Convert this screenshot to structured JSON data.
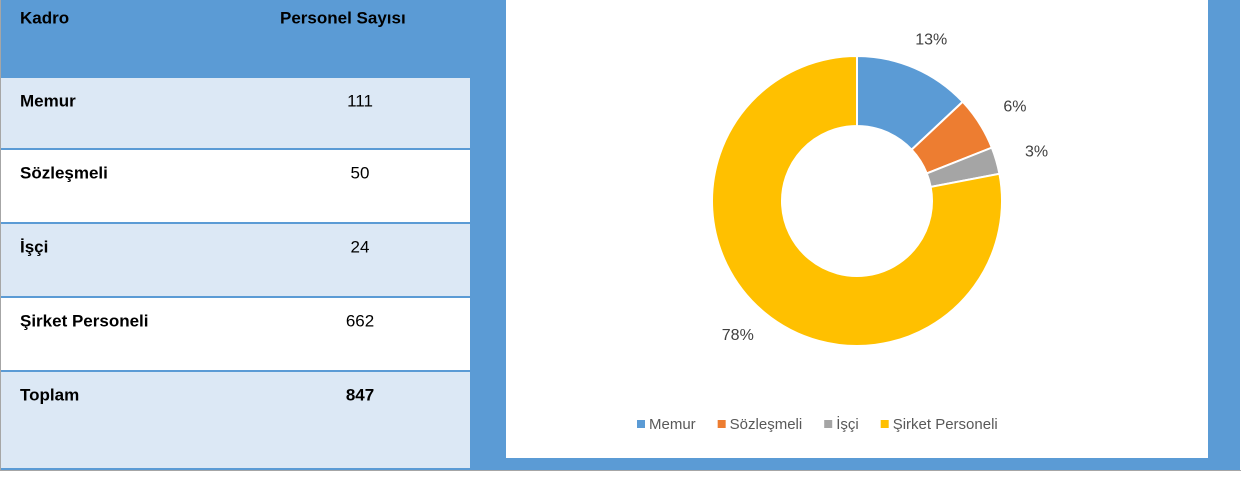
{
  "table": {
    "header": [
      "Kadro",
      "Personel Sayısı"
    ],
    "rows": [
      [
        "Memur",
        111
      ],
      [
        "Sözleşmeli",
        50
      ],
      [
        "İşçi",
        24
      ],
      [
        "Şirket Personeli",
        662
      ],
      [
        "Toplam",
        847
      ]
    ]
  },
  "chart_data": {
    "type": "pie",
    "donut": true,
    "categories": [
      "Memur",
      "Sözleşmeli",
      "İşçi",
      "Şirket Personeli"
    ],
    "values": [
      13,
      6,
      3,
      78
    ],
    "value_labels": [
      "13%",
      "6%",
      "3%",
      "78%"
    ],
    "colors": [
      "#5b9bd5",
      "#ed7d31",
      "#a5a5a5",
      "#ffc000"
    ],
    "legend": "bottom"
  }
}
